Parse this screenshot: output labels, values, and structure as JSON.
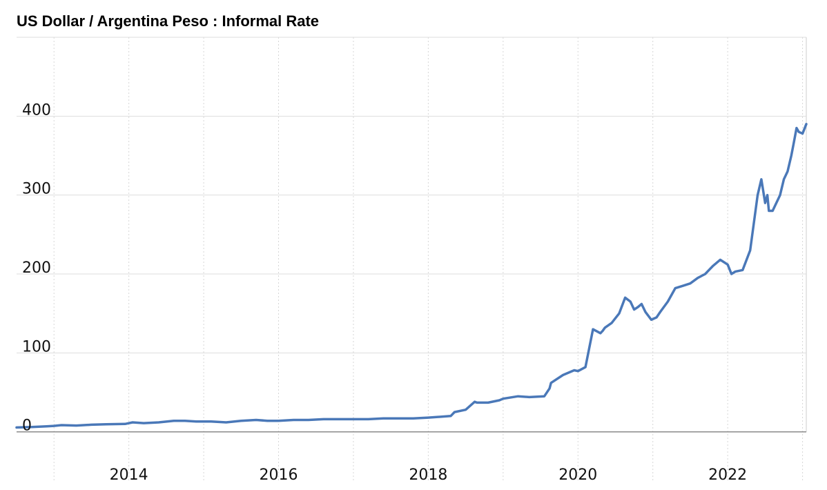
{
  "chart_data": {
    "type": "line",
    "title": "US Dollar / Argentina Peso : Informal Rate",
    "xlabel": "",
    "ylabel": "",
    "xlim": [
      2012.5,
      2023.05
    ],
    "ylim": [
      -30,
      500
    ],
    "y_ticks": [
      0,
      100,
      200,
      300,
      400
    ],
    "x_tick_labels": [
      "2014",
      "2016",
      "2018",
      "2020",
      "2022"
    ],
    "x_tick_positions": [
      2014,
      2016,
      2018,
      2020,
      2022
    ],
    "x_minor_gridlines": [
      2013,
      2014,
      2015,
      2016,
      2017,
      2018,
      2019,
      2020,
      2021,
      2022,
      2023
    ],
    "grid": true,
    "legend": "none",
    "series": [
      {
        "color": "#4a78b8",
        "x": [
          2012.5,
          2012.7,
          2012.9,
          2013.0,
          2013.1,
          2013.3,
          2013.5,
          2013.7,
          2013.95,
          2014.05,
          2014.2,
          2014.4,
          2014.6,
          2014.75,
          2014.9,
          2015.1,
          2015.3,
          2015.5,
          2015.7,
          2015.85,
          2016.0,
          2016.2,
          2016.4,
          2016.6,
          2016.8,
          2017.0,
          2017.2,
          2017.4,
          2017.6,
          2017.8,
          2018.0,
          2018.3,
          2018.35,
          2018.5,
          2018.62,
          2018.65,
          2018.8,
          2018.95,
          2019.0,
          2019.2,
          2019.35,
          2019.55,
          2019.62,
          2019.64,
          2019.8,
          2019.95,
          2020.0,
          2020.1,
          2020.2,
          2020.3,
          2020.33,
          2020.36,
          2020.45,
          2020.55,
          2020.63,
          2020.7,
          2020.75,
          2020.8,
          2020.85,
          2020.9,
          2020.98,
          2021.05,
          2021.1,
          2021.2,
          2021.3,
          2021.4,
          2021.5,
          2021.6,
          2021.7,
          2021.75,
          2021.8,
          2021.9,
          2022.0,
          2022.05,
          2022.1,
          2022.2,
          2022.3,
          2022.4,
          2022.45,
          2022.5,
          2022.53,
          2022.55,
          2022.6,
          2022.65,
          2022.7,
          2022.75,
          2022.8,
          2022.85,
          2022.88,
          2022.92,
          2022.95,
          2023.0,
          2023.05
        ],
        "y": [
          5.5,
          6,
          7,
          7.5,
          8.5,
          8,
          9,
          9.5,
          10,
          12,
          11,
          12,
          14,
          14,
          13,
          13,
          12,
          14,
          15,
          14,
          14,
          15,
          15,
          16,
          16,
          16,
          16,
          17,
          17,
          17,
          18,
          20,
          25,
          28,
          38,
          37,
          37,
          40,
          42,
          45,
          44,
          45,
          55,
          62,
          72,
          78,
          77,
          82,
          130,
          125,
          128,
          132,
          138,
          150,
          170,
          165,
          155,
          158,
          162,
          152,
          142,
          145,
          152,
          165,
          182,
          185,
          188,
          195,
          200,
          205,
          210,
          218,
          212,
          200,
          203,
          205,
          230,
          300,
          320,
          290,
          300,
          280,
          280,
          290,
          300,
          320,
          330,
          350,
          365,
          385,
          380,
          378,
          390
        ]
      }
    ]
  }
}
